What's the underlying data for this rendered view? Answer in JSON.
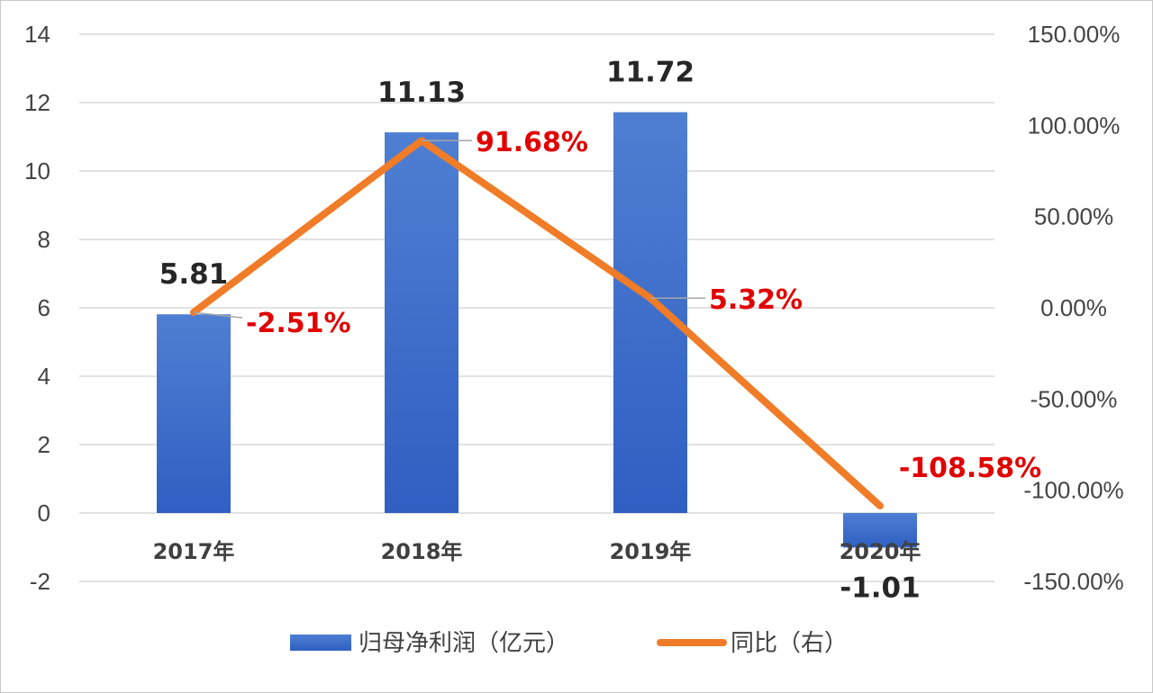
{
  "chart_data": {
    "type": "bar",
    "categories": [
      "2017年",
      "2018年",
      "2019年",
      "2020年"
    ],
    "left_axis": {
      "ylim": [
        -2,
        14
      ],
      "ticks": [
        -2,
        0,
        2,
        4,
        6,
        8,
        10,
        12,
        14
      ]
    },
    "right_axis": {
      "ylim": [
        -150,
        150
      ],
      "ticks": [
        -150,
        -100,
        -50,
        0,
        50,
        100,
        150
      ],
      "tick_labels": [
        "-150.00%",
        "-100.00%",
        "-50.00%",
        "0.00%",
        "50.00%",
        "100.00%",
        "150.00%"
      ]
    },
    "grid": true,
    "legend_position": "bottom",
    "series": [
      {
        "name": "归母净利润（亿元）",
        "type": "bar",
        "axis": "left",
        "values": [
          5.81,
          11.13,
          11.72,
          -1.01
        ],
        "labels": [
          "5.81",
          "11.13",
          "11.72",
          "-1.01"
        ],
        "color": "#3a6bc9"
      },
      {
        "name": "同比（右）",
        "type": "line",
        "axis": "right",
        "values": [
          -2.51,
          91.68,
          5.32,
          -108.58
        ],
        "labels": [
          "-2.51%",
          "91.68%",
          "5.32%",
          "-108.58%"
        ],
        "color": "#f07c28",
        "label_color": "#e00000"
      }
    ]
  }
}
